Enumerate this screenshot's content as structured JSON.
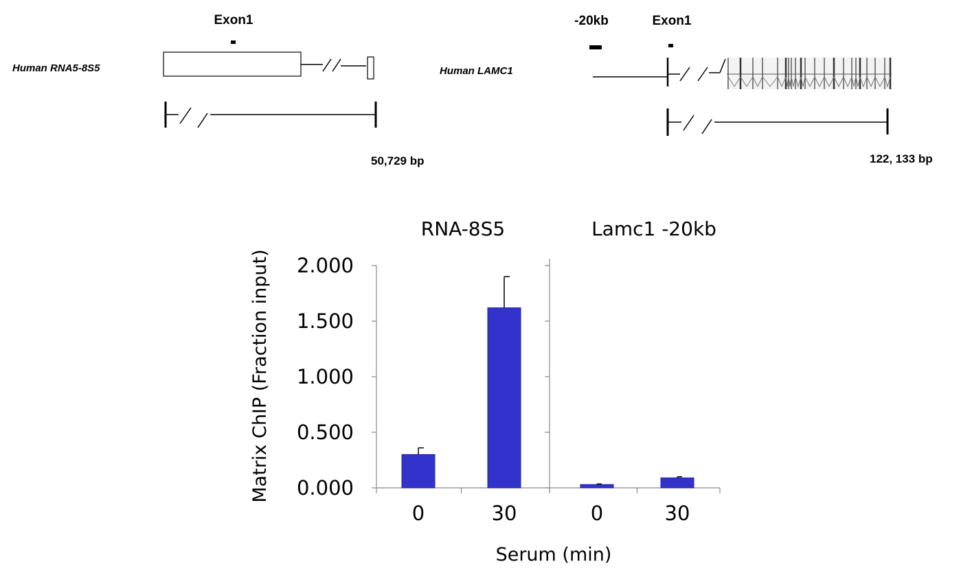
{
  "gene_maps": {
    "left": {
      "gene_label": "Human  RNA5-8S5",
      "exon_label": "Exon1",
      "size_label": "50,729 bp"
    },
    "right": {
      "gene_label": "Human LAMC1",
      "region_label": "-20kb",
      "exon_label": "Exon1",
      "size_label": "122, 133 bp"
    }
  },
  "chart_data": {
    "type": "bar",
    "ylabel": "Matrix ChIP (Fraction input)",
    "xlabel": "Serum (min)",
    "ylim": [
      0,
      2.0
    ],
    "yticks": [
      "0.000",
      "0.500",
      "1.000",
      "1.500",
      "2.000"
    ],
    "bar_color": "#3333cc",
    "panels": [
      {
        "title": "RNA-8S5",
        "categories": [
          "0",
          "30"
        ],
        "values": [
          0.3,
          1.62
        ],
        "errors": [
          0.06,
          0.28
        ]
      },
      {
        "title": "Lamc1 -20kb",
        "categories": [
          "0",
          "30"
        ],
        "values": [
          0.03,
          0.09
        ],
        "errors": [
          0.005,
          0.01
        ]
      }
    ]
  }
}
